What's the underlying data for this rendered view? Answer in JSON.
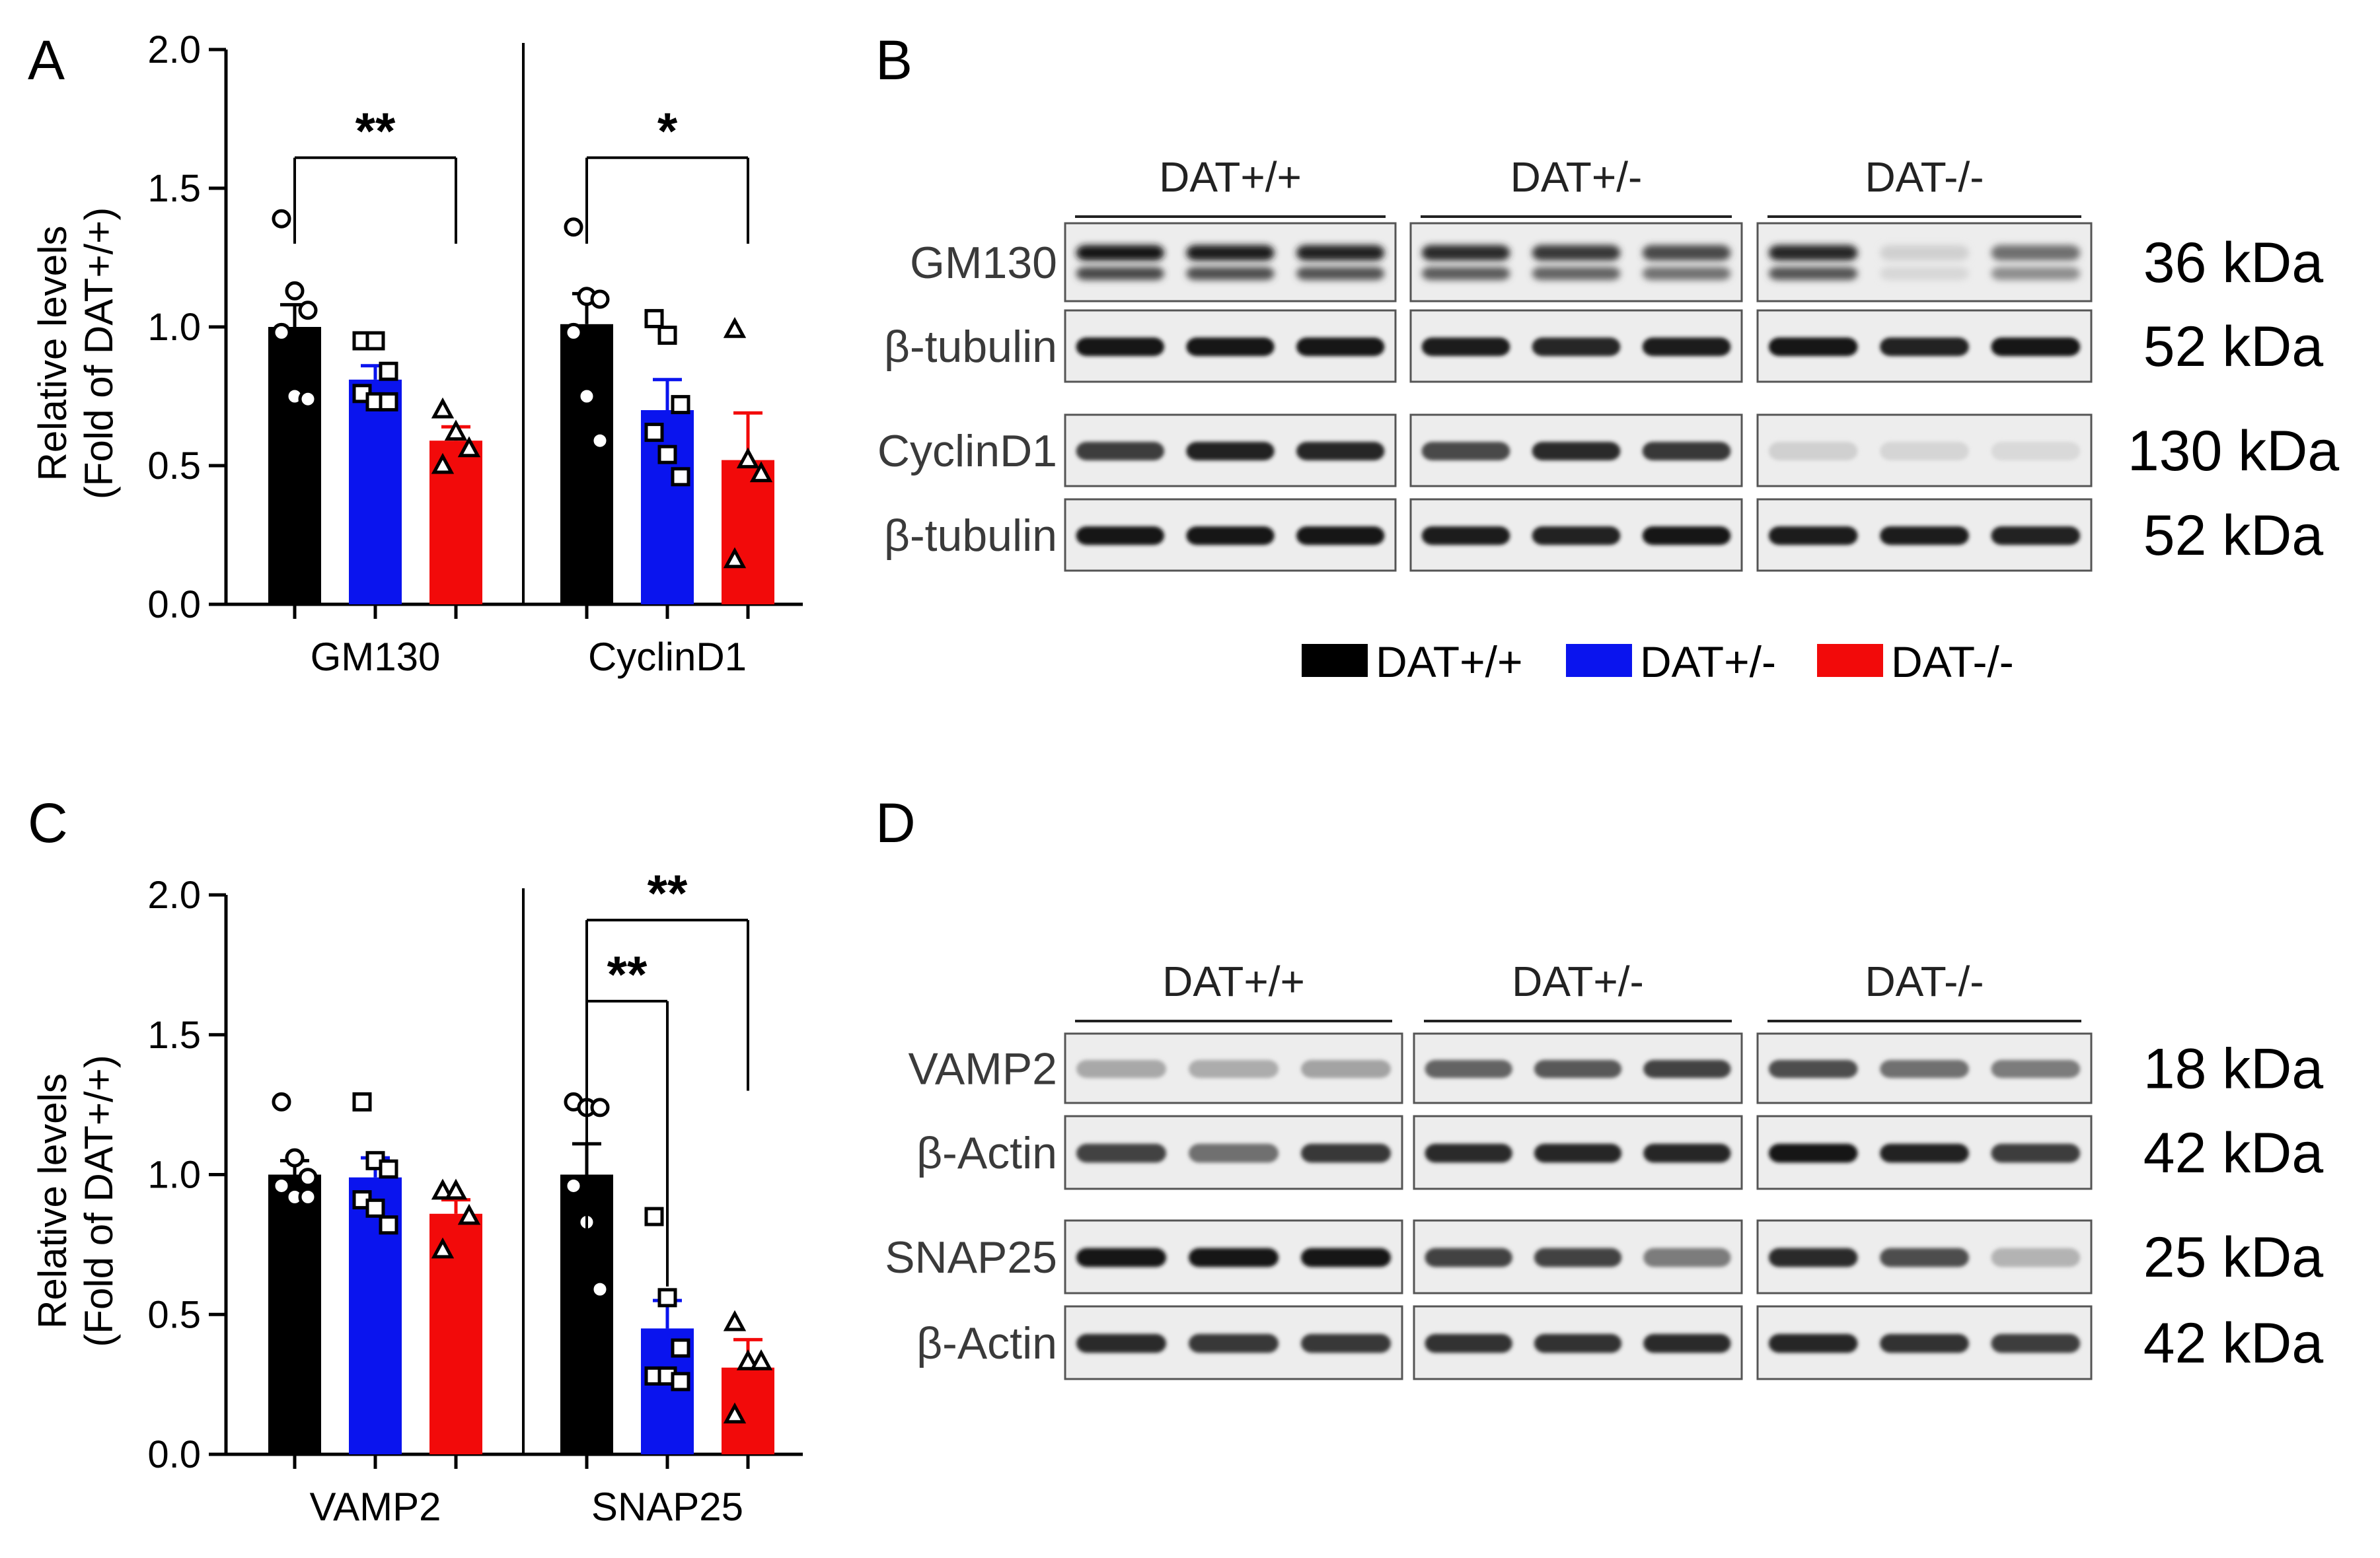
{
  "colors": {
    "DAT+/+": "#000000",
    "DAT+/-": "#0a14ee",
    "DAT-/-": "#f20a0a"
  },
  "panels": {
    "A": "A",
    "B": "B",
    "C": "C",
    "D": "D"
  },
  "legend": [
    "DAT+/+",
    "DAT+/-",
    "DAT-/-"
  ],
  "chart_data": [
    {
      "panel": "A",
      "type": "bar",
      "ylabel": [
        "Relative levels",
        "(Fold of DAT+/+)"
      ],
      "ylim": [
        0,
        2.0
      ],
      "yticks": [
        "0.0",
        "0.5",
        "1.0",
        "1.5",
        "2.0"
      ],
      "categories": [
        "GM130",
        "CyclinD1"
      ],
      "series": [
        {
          "name": "DAT+/+",
          "values": [
            1.0,
            1.01
          ],
          "errors": [
            0.08,
            0.11
          ],
          "points": [
            [
              1.39,
              1.13,
              1.06,
              0.98,
              0.75,
              0.74
            ],
            [
              1.36,
              1.11,
              1.1,
              0.98,
              0.75,
              0.59
            ]
          ]
        },
        {
          "name": "DAT+/-",
          "values": [
            0.81,
            0.7
          ],
          "errors": [
            0.05,
            0.11
          ],
          "points": [
            [
              0.95,
              0.95,
              0.84,
              0.76,
              0.73,
              0.73
            ],
            [
              1.03,
              0.97,
              0.72,
              0.62,
              0.54,
              0.46
            ]
          ]
        },
        {
          "name": "DAT-/-",
          "values": [
            0.59,
            0.52
          ],
          "errors": [
            0.05,
            0.17
          ],
          "points": [
            [
              0.7,
              0.62,
              0.56,
              0.5
            ],
            [
              0.99,
              0.52,
              0.47,
              0.16
            ]
          ]
        }
      ],
      "significance": [
        {
          "group": 0,
          "from": 0,
          "to": 2,
          "label": "**",
          "y": 1.61,
          "drop_from": 1.61,
          "drop_to": 1.3
        },
        {
          "group": 1,
          "from": 0,
          "to": 2,
          "label": "*",
          "y": 1.61,
          "drop_from": 1.61,
          "drop_to": 1.3
        }
      ]
    },
    {
      "panel": "C",
      "type": "bar",
      "ylabel": [
        "Relative levels",
        "(Fold of DAT+/+)"
      ],
      "ylim": [
        0,
        2.0
      ],
      "yticks": [
        "0.0",
        "0.5",
        "1.0",
        "1.5",
        "2.0"
      ],
      "categories": [
        "VAMP2",
        "SNAP25"
      ],
      "series": [
        {
          "name": "DAT+/+",
          "values": [
            1.0,
            1.0
          ],
          "errors": [
            0.05,
            0.11
          ],
          "points": [
            [
              1.26,
              1.06,
              0.99,
              0.96,
              0.92,
              0.92
            ],
            [
              1.26,
              1.24,
              1.24,
              0.96,
              0.83,
              0.59
            ]
          ]
        },
        {
          "name": "DAT+/-",
          "values": [
            0.99,
            0.45
          ],
          "errors": [
            0.07,
            0.1
          ],
          "points": [
            [
              1.26,
              1.05,
              1.02,
              0.91,
              0.88,
              0.82
            ],
            [
              0.85,
              0.56,
              0.38,
              0.28,
              0.28,
              0.26
            ]
          ]
        },
        {
          "name": "DAT-/-",
          "values": [
            0.86,
            0.31
          ],
          "errors": [
            0.05,
            0.1
          ],
          "points": [
            [
              0.94,
              0.94,
              0.85,
              0.73
            ],
            [
              0.47,
              0.33,
              0.33,
              0.14
            ]
          ]
        }
      ],
      "significance": [
        {
          "group": 1,
          "from": 0,
          "to": 2,
          "label": "**",
          "y": 1.91,
          "drop_from": 1.91,
          "drop_to": 1.3
        },
        {
          "group": 1,
          "from": 0,
          "to": 1,
          "label": "**",
          "y": 1.62,
          "drop_from": 1.62,
          "drop_to": 0.6
        }
      ]
    }
  ],
  "blots": [
    {
      "panel": "B",
      "genotypes": [
        "DAT+/+",
        "DAT+/-",
        "DAT-/-"
      ],
      "rows": [
        {
          "label": "GM130",
          "kda": "36 kDa",
          "kind": "gm130",
          "intensity": [
            0.95,
            0.92,
            0.9,
            0.85,
            0.8,
            0.72,
            0.88,
            0.12,
            0.55
          ]
        },
        {
          "label": "β-tubulin",
          "kda": "52 kDa",
          "kind": "band",
          "intensity": [
            0.95,
            0.95,
            0.95,
            0.92,
            0.88,
            0.92,
            0.95,
            0.9,
            0.95
          ]
        },
        {
          "label": "CyclinD1",
          "kda": "130 kDa",
          "kind": "band",
          "intensity": [
            0.78,
            0.9,
            0.88,
            0.72,
            0.85,
            0.8,
            0.12,
            0.1,
            0.08
          ]
        },
        {
          "label": "β-tubulin",
          "kda": "52 kDa",
          "kind": "band",
          "intensity": [
            0.95,
            0.95,
            0.95,
            0.92,
            0.9,
            0.95,
            0.92,
            0.92,
            0.9
          ]
        }
      ]
    },
    {
      "panel": "D",
      "genotypes": [
        "DAT+/+",
        "DAT+/-",
        "DAT-/-"
      ],
      "rows": [
        {
          "label": "VAMP2",
          "kda": "18 kDa",
          "kind": "band",
          "intensity": [
            0.3,
            0.28,
            0.32,
            0.6,
            0.65,
            0.75,
            0.7,
            0.55,
            0.5
          ]
        },
        {
          "label": "β-Actin",
          "kda": "42 kDa",
          "kind": "band",
          "intensity": [
            0.75,
            0.55,
            0.8,
            0.85,
            0.88,
            0.88,
            0.95,
            0.9,
            0.78
          ]
        },
        {
          "label": "SNAP25",
          "kda": "25 kDa",
          "kind": "band",
          "intensity": [
            0.95,
            0.95,
            0.95,
            0.75,
            0.75,
            0.5,
            0.85,
            0.7,
            0.25
          ]
        },
        {
          "label": "β-Actin",
          "kda": "42 kDa",
          "kind": "band",
          "intensity": [
            0.85,
            0.8,
            0.8,
            0.82,
            0.82,
            0.85,
            0.88,
            0.82,
            0.78
          ]
        }
      ]
    }
  ]
}
